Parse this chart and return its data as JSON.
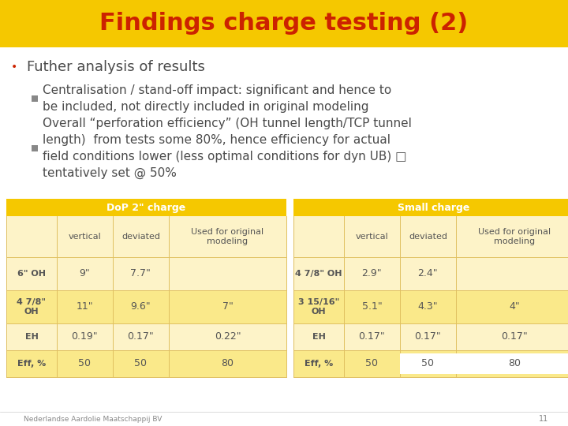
{
  "title": "Findings charge testing (2)",
  "title_color": "#CC2200",
  "title_bg_color": "#F5C800",
  "bg_color": "#FFFFFF",
  "bullet1": "Futher analysis of results",
  "sub1": "Centralisation / stand-off impact: significant and hence to\nbe included, not directly included in original modeling",
  "sub2": "Overall “perforation efficiency” (OH tunnel length/TCP tunnel\nlength)  from tests some 80%, hence efficiency for actual\nfield conditions lower (less optimal conditions for dyn UB) □\ntentatively set @ 50%",
  "table1_header": "DoP 2\" charge",
  "table2_header": "Small charge",
  "table_header_color": "#F5C800",
  "table_header_text_color": "#FFFFFF",
  "table_bg_color": "#FDF3C8",
  "table_row_bg": "#FAE98A",
  "col_headers": [
    "",
    "vertical",
    "deviated",
    "Used for original\nmodeling"
  ],
  "table1_rows": [
    [
      "6\" OH",
      "9\"",
      "7.7\"",
      ""
    ],
    [
      "4 7/8\"\nOH",
      "11\"",
      "9.6\"",
      "7\""
    ],
    [
      "EH",
      "0.19\"",
      "0.17\"",
      "0.22\""
    ],
    [
      "Eff, %",
      "50",
      "50",
      "80"
    ]
  ],
  "table2_rows": [
    [
      "4 7/8\" OH",
      "2.9\"",
      "2.4\"",
      ""
    ],
    [
      "3 15/16\"\nOH",
      "5.1\"",
      "4.3\"",
      "4\""
    ],
    [
      "EH",
      "0.17\"",
      "0.17\"",
      "0.17\""
    ],
    [
      "Eff, %",
      "50",
      "50",
      "80"
    ]
  ],
  "footer_text": "Nederlandse Aardolie Maatschappij BV",
  "footer_number": "11",
  "text_color": "#4A4A4A",
  "table_text_color": "#555555",
  "bullet_color": "#CC2200",
  "sq_marker_color": "#888888"
}
